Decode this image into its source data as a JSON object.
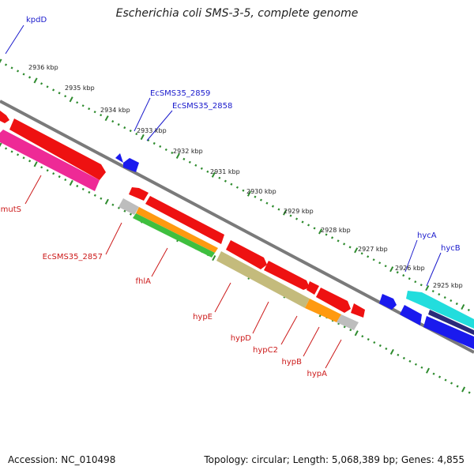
{
  "title": "Escherichia coli SMS-3-5, complete genome",
  "footer": {
    "accession": "Accession: NC_010498",
    "summary": "Topology: circular; Length: 5,068,389 bp; Genes: 4,855"
  },
  "colors": {
    "backbone": "#7a7a7a",
    "tick": "#2e8b2e",
    "gene_red": "#ee1111",
    "gene_blue": "#1a1aee",
    "gene_pink": "#ee2a96",
    "gene_gray": "#bdbdbd",
    "gene_orange": "#ff9a10",
    "gene_green": "#3fbf3f",
    "gene_olive": "#c4bb7c",
    "gene_cyan": "#22dddd",
    "gene_navy": "#2a2a7a",
    "label_blue": "#1a1acc",
    "label_red": "#cc1a1a"
  },
  "scale_labels": [
    "2936 kbp",
    "2935 kbp",
    "2934 kbp",
    "2933 kbp",
    "2932 kbp",
    "2931 kbp",
    "2930 kbp",
    "2929 kbp",
    "2928 kbp",
    "2927 kbp",
    "2926 kbp",
    "2925 kbp"
  ],
  "gene_labels_top": [
    "kpdD",
    "EcSMS35_2859",
    "EcSMS35_2858",
    "hycA",
    "hycB"
  ],
  "gene_labels_bottom": [
    "mutS",
    "EcSMS35_2857",
    "fhlA",
    "hypE",
    "hypD",
    "hypC2",
    "hypB",
    "hypA"
  ]
}
